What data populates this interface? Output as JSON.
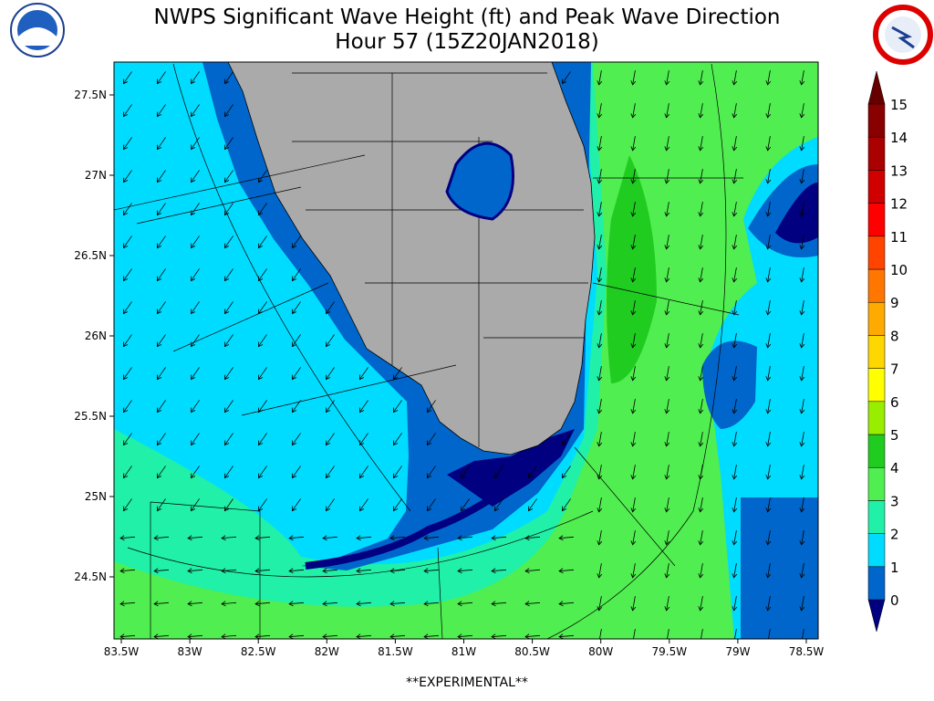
{
  "header": {
    "title_lines": [
      "NWPS Significant Wave Height (ft) and Peak Wave Direction",
      "Hour 57 (15Z20JAN2018)"
    ]
  },
  "map": {
    "lat_labels": [
      "27.5N",
      "27N",
      "26.5N",
      "26N",
      "25.5N",
      "25N",
      "24.5N"
    ],
    "lon_labels": [
      "83.5W",
      "83W",
      "82.5W",
      "82W",
      "81.5W",
      "81W",
      "80.5W",
      "80W",
      "79.5W",
      "79W",
      "78.5W"
    ]
  },
  "colorbar": {
    "labels": [
      0,
      1,
      2,
      3,
      4,
      5,
      6,
      7,
      8,
      9,
      10,
      11,
      12,
      13,
      14,
      15
    ],
    "colors": [
      "#000080",
      "#0066cc",
      "#00dcff",
      "#20f0a8",
      "#50ee50",
      "#20cc20",
      "#99ee00",
      "#ffff00",
      "#ffd700",
      "#ffaa00",
      "#ff7700",
      "#ff4400",
      "#ff0000",
      "#d00000",
      "#aa0000",
      "#880000",
      "#660000"
    ]
  },
  "footer": "**EXPERIMENTAL**"
}
